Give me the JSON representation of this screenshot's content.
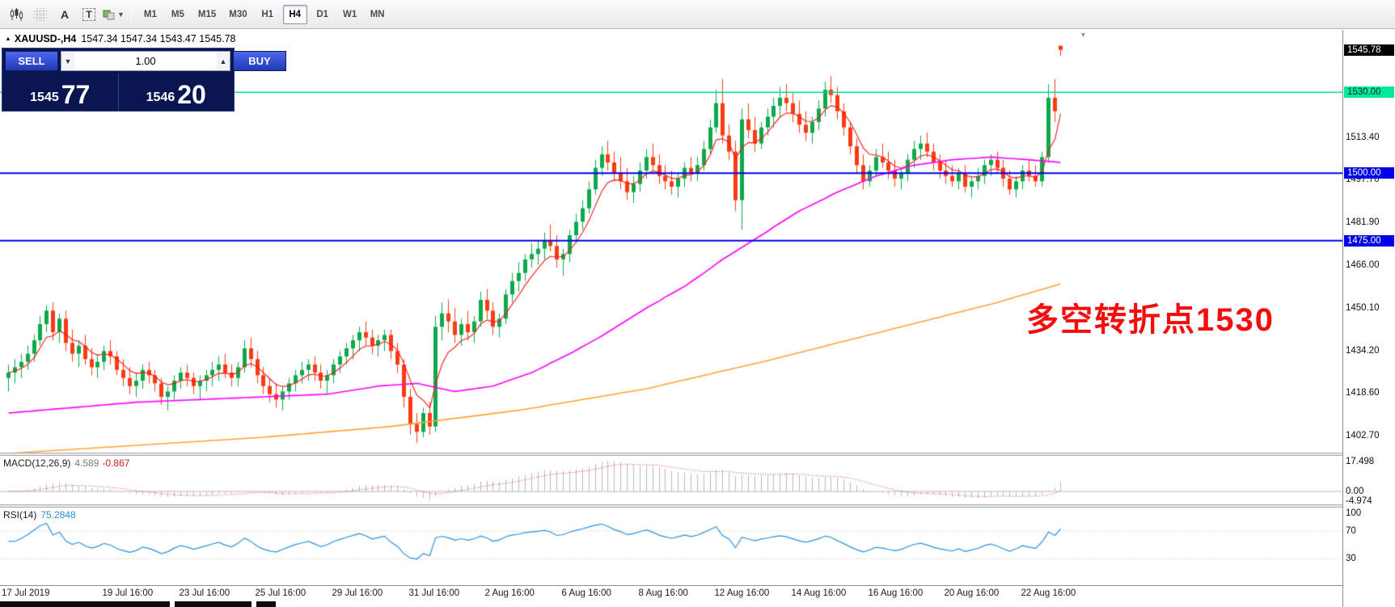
{
  "toolbar": {
    "icon_buttons": [
      "bar-chart",
      "grid",
      "text-label",
      "text-tool",
      "line-style"
    ],
    "timeframes": [
      "M1",
      "M5",
      "M15",
      "M30",
      "H1",
      "H4",
      "D1",
      "W1",
      "MN"
    ],
    "active_timeframe": "H4"
  },
  "chart": {
    "symbol_title": "XAUUSD-,H4",
    "ohlc_text": "1547.34 1547.34 1543.47 1545.78",
    "open": "1547.34",
    "high": "1547.34",
    "low": "1543.47",
    "close": "1545.78",
    "annotation": "多空转折点1530",
    "annotation_color": "#f50d0d"
  },
  "trade_panel": {
    "sell_label": "SELL",
    "buy_label": "BUY",
    "volume": "1.00",
    "sell_price_main": "1545",
    "sell_price_pips": "77",
    "buy_price_main": "1546",
    "buy_price_pips": "20"
  },
  "indicators": {
    "macd": {
      "name": "MACD(12,26,9)",
      "value1": "4.589",
      "value2": "-0.867",
      "ticks": [
        {
          "v": 17.498,
          "label": "17.498"
        },
        {
          "v": 0,
          "label": "0.00"
        },
        {
          "v": -4.974,
          "label": "-4.974"
        }
      ]
    },
    "rsi": {
      "name": "RSI(14)",
      "value": "75.2848",
      "ticks": [
        {
          "v": 100,
          "label": "100"
        },
        {
          "v": 70,
          "label": "70"
        },
        {
          "v": 30,
          "label": "30"
        }
      ],
      "levels": [
        70,
        30
      ]
    }
  },
  "x_labels": [
    {
      "i": 0,
      "t": "17 Jul 2019"
    },
    {
      "i": 16,
      "t": "19 Jul 16:00"
    },
    {
      "i": 28,
      "t": "23 Jul 16:00"
    },
    {
      "i": 40,
      "t": "25 Jul 16:00"
    },
    {
      "i": 52,
      "t": "29 Jul 16:00"
    },
    {
      "i": 64,
      "t": "31 Jul 16:00"
    },
    {
      "i": 76,
      "t": "2 Aug 16:00"
    },
    {
      "i": 88,
      "t": "6 Aug 16:00"
    },
    {
      "i": 100,
      "t": "8 Aug 16:00"
    },
    {
      "i": 112,
      "t": "12 Aug 16:00"
    },
    {
      "i": 124,
      "t": "14 Aug 16:00"
    },
    {
      "i": 136,
      "t": "16 Aug 16:00"
    },
    {
      "i": 148,
      "t": "20 Aug 16:00"
    },
    {
      "i": 160,
      "t": "22 Aug 16:00"
    }
  ],
  "chart_data": {
    "type": "candlestick",
    "symbol": "XAUUSD-",
    "timeframe": "H4",
    "price_range": [
      1552,
      1397.5
    ],
    "macd_range": [
      17.498,
      -4.974
    ],
    "y_ticks": [
      "1513.40",
      "1497.70",
      "1481.90",
      "1466.00",
      "1450.10",
      "1434.20",
      "1418.60",
      "1402.70"
    ],
    "levels": [
      {
        "price": 1545.78,
        "label": "1545.78",
        "line": false,
        "bg": "#000000",
        "fg": "#ffffff"
      },
      {
        "price": 1530.0,
        "label": "1530.00",
        "line": true,
        "color": "#00d98c",
        "width": 1.5,
        "bg": "#00e89c",
        "fg": "#00332a"
      },
      {
        "price": 1500.0,
        "label": "1500.00",
        "line": true,
        "color": "#0000e6",
        "width": 2,
        "bg": "#0000e6",
        "fg": "#ffffff"
      },
      {
        "price": 1475.0,
        "label": "1475.00",
        "line": true,
        "color": "#0000e6",
        "width": 2,
        "bg": "#0000e6",
        "fg": "#ffffff"
      }
    ],
    "colors": {
      "up": "#0fa94c",
      "down": "#fb3b16",
      "ma_fast": "#ff1414",
      "ma_mid": "#ff00ff",
      "ma_slow": "#ffa335",
      "rsi": "#2a8fe0",
      "macd_hist": "#b8b8b8",
      "macd_signal": "#e03030",
      "background": "#ffffff"
    },
    "ma_fast": {
      "type": "ema",
      "period": 6
    },
    "ma_mid": {
      "points": [
        [
          0,
          1411
        ],
        [
          10,
          1413
        ],
        [
          20,
          1415
        ],
        [
          30,
          1416
        ],
        [
          40,
          1417
        ],
        [
          50,
          1418
        ],
        [
          58,
          1421
        ],
        [
          64,
          1422
        ],
        [
          70,
          1419
        ],
        [
          76,
          1421
        ],
        [
          82,
          1426
        ],
        [
          88,
          1433
        ],
        [
          94,
          1441
        ],
        [
          100,
          1450
        ],
        [
          106,
          1458
        ],
        [
          112,
          1468
        ],
        [
          118,
          1477
        ],
        [
          124,
          1486
        ],
        [
          130,
          1493
        ],
        [
          136,
          1499
        ],
        [
          142,
          1503
        ],
        [
          148,
          1505
        ],
        [
          154,
          1506
        ],
        [
          160,
          1505
        ],
        [
          165,
          1504
        ]
      ]
    },
    "ma_slow": {
      "points": [
        [
          0,
          1396
        ],
        [
          20,
          1399
        ],
        [
          40,
          1402
        ],
        [
          60,
          1406
        ],
        [
          80,
          1412
        ],
        [
          100,
          1420
        ],
        [
          120,
          1431
        ],
        [
          140,
          1443
        ],
        [
          155,
          1452
        ],
        [
          165,
          1459
        ]
      ]
    },
    "candles": [
      [
        1424,
        1429,
        1419,
        1426
      ],
      [
        1426,
        1431,
        1422,
        1428
      ],
      [
        1428,
        1433,
        1424,
        1430
      ],
      [
        1430,
        1436,
        1427,
        1433
      ],
      [
        1433,
        1440,
        1430,
        1438
      ],
      [
        1438,
        1447,
        1436,
        1444
      ],
      [
        1444,
        1451,
        1441,
        1449
      ],
      [
        1449,
        1452,
        1438,
        1441
      ],
      [
        1441,
        1448,
        1437,
        1446
      ],
      [
        1446,
        1449,
        1434,
        1437
      ],
      [
        1437,
        1442,
        1430,
        1433
      ],
      [
        1433,
        1438,
        1428,
        1436
      ],
      [
        1436,
        1440,
        1429,
        1431
      ],
      [
        1431,
        1435,
        1425,
        1428
      ],
      [
        1428,
        1433,
        1424,
        1430
      ],
      [
        1430,
        1436,
        1427,
        1434
      ],
      [
        1434,
        1438,
        1429,
        1432
      ],
      [
        1432,
        1434,
        1425,
        1427
      ],
      [
        1427,
        1431,
        1421,
        1424
      ],
      [
        1424,
        1428,
        1418,
        1421
      ],
      [
        1421,
        1426,
        1417,
        1423
      ],
      [
        1423,
        1429,
        1420,
        1427
      ],
      [
        1427,
        1430,
        1422,
        1425
      ],
      [
        1425,
        1427,
        1419,
        1422
      ],
      [
        1422,
        1424,
        1414,
        1417
      ],
      [
        1417,
        1421,
        1412,
        1419
      ],
      [
        1419,
        1425,
        1416,
        1423
      ],
      [
        1423,
        1428,
        1420,
        1426
      ],
      [
        1426,
        1429,
        1421,
        1424
      ],
      [
        1424,
        1426,
        1418,
        1421
      ],
      [
        1421,
        1425,
        1416,
        1423
      ],
      [
        1423,
        1427,
        1419,
        1425
      ],
      [
        1425,
        1430,
        1421,
        1427
      ],
      [
        1427,
        1432,
        1423,
        1429
      ],
      [
        1429,
        1433,
        1424,
        1426
      ],
      [
        1426,
        1429,
        1421,
        1424
      ],
      [
        1424,
        1430,
        1421,
        1428
      ],
      [
        1428,
        1438,
        1426,
        1435
      ],
      [
        1435,
        1439,
        1428,
        1431
      ],
      [
        1431,
        1434,
        1422,
        1425
      ],
      [
        1425,
        1428,
        1418,
        1421
      ],
      [
        1421,
        1424,
        1415,
        1418
      ],
      [
        1418,
        1422,
        1413,
        1416
      ],
      [
        1416,
        1421,
        1412,
        1419
      ],
      [
        1419,
        1424,
        1416,
        1422
      ],
      [
        1422,
        1427,
        1419,
        1425
      ],
      [
        1425,
        1430,
        1422,
        1427
      ],
      [
        1427,
        1431,
        1423,
        1429
      ],
      [
        1429,
        1432,
        1423,
        1426
      ],
      [
        1426,
        1429,
        1420,
        1423
      ],
      [
        1423,
        1427,
        1418,
        1425
      ],
      [
        1425,
        1431,
        1422,
        1429
      ],
      [
        1429,
        1434,
        1426,
        1432
      ],
      [
        1432,
        1437,
        1429,
        1435
      ],
      [
        1435,
        1440,
        1431,
        1438
      ],
      [
        1438,
        1443,
        1434,
        1441
      ],
      [
        1441,
        1445,
        1436,
        1439
      ],
      [
        1439,
        1442,
        1433,
        1436
      ],
      [
        1436,
        1440,
        1432,
        1438
      ],
      [
        1438,
        1442,
        1434,
        1440
      ],
      [
        1440,
        1442,
        1431,
        1434
      ],
      [
        1434,
        1437,
        1426,
        1429
      ],
      [
        1429,
        1431,
        1413,
        1417
      ],
      [
        1417,
        1420,
        1403,
        1407
      ],
      [
        1407,
        1411,
        1400,
        1404
      ],
      [
        1404,
        1413,
        1402,
        1411
      ],
      [
        1411,
        1415,
        1403,
        1406
      ],
      [
        1406,
        1447,
        1404,
        1443
      ],
      [
        1443,
        1452,
        1438,
        1448
      ],
      [
        1448,
        1453,
        1441,
        1445
      ],
      [
        1445,
        1450,
        1437,
        1440
      ],
      [
        1440,
        1446,
        1436,
        1444
      ],
      [
        1444,
        1449,
        1438,
        1441
      ],
      [
        1441,
        1447,
        1437,
        1445
      ],
      [
        1445,
        1456,
        1443,
        1453
      ],
      [
        1453,
        1457,
        1446,
        1449
      ],
      [
        1449,
        1452,
        1440,
        1443
      ],
      [
        1443,
        1448,
        1439,
        1446
      ],
      [
        1446,
        1457,
        1444,
        1455
      ],
      [
        1455,
        1463,
        1452,
        1460
      ],
      [
        1460,
        1467,
        1456,
        1463
      ],
      [
        1463,
        1470,
        1460,
        1468
      ],
      [
        1468,
        1474,
        1465,
        1470
      ],
      [
        1470,
        1475,
        1466,
        1472
      ],
      [
        1472,
        1478,
        1468,
        1475
      ],
      [
        1475,
        1481,
        1471,
        1473
      ],
      [
        1473,
        1477,
        1465,
        1468
      ],
      [
        1468,
        1472,
        1462,
        1470
      ],
      [
        1470,
        1479,
        1467,
        1477
      ],
      [
        1477,
        1485,
        1474,
        1482
      ],
      [
        1482,
        1490,
        1479,
        1487
      ],
      [
        1487,
        1497,
        1485,
        1494
      ],
      [
        1494,
        1505,
        1492,
        1502
      ],
      [
        1502,
        1510,
        1499,
        1507
      ],
      [
        1507,
        1512,
        1501,
        1504
      ],
      [
        1504,
        1508,
        1497,
        1500
      ],
      [
        1500,
        1506,
        1494,
        1497
      ],
      [
        1497,
        1502,
        1490,
        1493
      ],
      [
        1493,
        1499,
        1489,
        1496
      ],
      [
        1496,
        1504,
        1493,
        1501
      ],
      [
        1501,
        1509,
        1498,
        1506
      ],
      [
        1506,
        1511,
        1501,
        1503
      ],
      [
        1503,
        1507,
        1496,
        1499
      ],
      [
        1499,
        1503,
        1494,
        1497
      ],
      [
        1497,
        1501,
        1492,
        1495
      ],
      [
        1495,
        1500,
        1491,
        1498
      ],
      [
        1498,
        1504,
        1495,
        1502
      ],
      [
        1502,
        1506,
        1497,
        1500
      ],
      [
        1500,
        1506,
        1497,
        1503
      ],
      [
        1503,
        1512,
        1501,
        1509
      ],
      [
        1509,
        1520,
        1507,
        1517
      ],
      [
        1517,
        1531,
        1515,
        1526
      ],
      [
        1526,
        1535,
        1511,
        1514
      ],
      [
        1514,
        1518,
        1505,
        1508
      ],
      [
        1508,
        1512,
        1486,
        1490
      ],
      [
        1490,
        1524,
        1479,
        1520
      ],
      [
        1520,
        1526,
        1513,
        1516
      ],
      [
        1516,
        1521,
        1508,
        1511
      ],
      [
        1511,
        1519,
        1509,
        1517
      ],
      [
        1517,
        1524,
        1514,
        1521
      ],
      [
        1521,
        1528,
        1517,
        1525
      ],
      [
        1525,
        1532,
        1521,
        1528
      ],
      [
        1528,
        1533,
        1523,
        1526
      ],
      [
        1526,
        1530,
        1519,
        1522
      ],
      [
        1522,
        1527,
        1515,
        1518
      ],
      [
        1518,
        1523,
        1512,
        1515
      ],
      [
        1515,
        1521,
        1511,
        1519
      ],
      [
        1519,
        1527,
        1516,
        1524
      ],
      [
        1524,
        1534,
        1521,
        1531
      ],
      [
        1531,
        1536,
        1526,
        1529
      ],
      [
        1529,
        1532,
        1520,
        1523
      ],
      [
        1523,
        1526,
        1514,
        1517
      ],
      [
        1517,
        1519,
        1507,
        1510
      ],
      [
        1510,
        1513,
        1500,
        1503
      ],
      [
        1503,
        1507,
        1494,
        1497
      ],
      [
        1497,
        1503,
        1495,
        1501
      ],
      [
        1501,
        1509,
        1499,
        1506
      ],
      [
        1506,
        1511,
        1502,
        1504
      ],
      [
        1504,
        1508,
        1498,
        1501
      ],
      [
        1501,
        1505,
        1495,
        1498
      ],
      [
        1498,
        1502,
        1494,
        1500
      ],
      [
        1500,
        1507,
        1497,
        1505
      ],
      [
        1505,
        1512,
        1502,
        1509
      ],
      [
        1509,
        1514,
        1505,
        1511
      ],
      [
        1511,
        1515,
        1506,
        1508
      ],
      [
        1508,
        1511,
        1501,
        1504
      ],
      [
        1504,
        1507,
        1498,
        1501
      ],
      [
        1501,
        1505,
        1496,
        1499
      ],
      [
        1499,
        1503,
        1495,
        1497
      ],
      [
        1497,
        1502,
        1494,
        1500
      ],
      [
        1500,
        1503,
        1493,
        1495
      ],
      [
        1495,
        1499,
        1491,
        1497
      ],
      [
        1497,
        1502,
        1494,
        1499
      ],
      [
        1499,
        1505,
        1496,
        1503
      ],
      [
        1503,
        1507,
        1499,
        1505
      ],
      [
        1505,
        1508,
        1500,
        1502
      ],
      [
        1502,
        1505,
        1495,
        1498
      ],
      [
        1498,
        1501,
        1492,
        1494
      ],
      [
        1494,
        1499,
        1491,
        1497
      ],
      [
        1497,
        1503,
        1494,
        1501
      ],
      [
        1501,
        1505,
        1497,
        1499
      ],
      [
        1499,
        1503,
        1495,
        1497
      ],
      [
        1497,
        1508,
        1495,
        1506
      ],
      [
        1506,
        1533,
        1504,
        1528
      ],
      [
        1528,
        1535,
        1519,
        1523
      ],
      [
        1547.34,
        1547.34,
        1543.47,
        1545.78
      ]
    ]
  }
}
